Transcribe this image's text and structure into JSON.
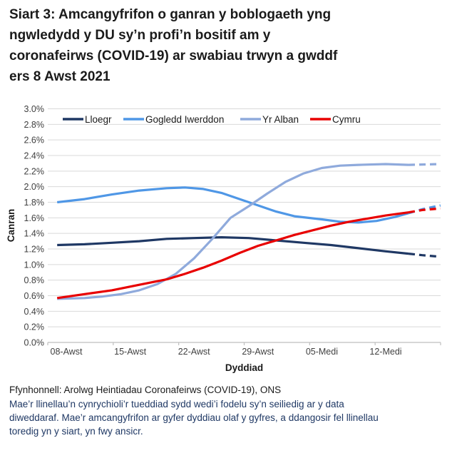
{
  "title": "Siart 3: Amcangyfrifon o ganran y boblogaeth yng\nngwledydd y DU sy’n profi’n bositif am y\ncoronafeirws (COVID-19) ar swabiau trwyn a gwddf\ners 8 Awst 2021",
  "footer": {
    "source": "Ffynhonnell: Arolwg Heintiadau Coronafeirws (COVID-19), ONS",
    "note": "Mae’r llinellau’n cynrychioli’r tueddiad sydd wedi’i fodelu sy’n seiliedig ar y data\ndiweddaraf. Mae’r amcangyfrifon ar gyfer dyddiau olaf y gyfres, a ddangosir fel llinellau\ntoredig yn y siart, yn fwy ansicr."
  },
  "chart_data": {
    "type": "line",
    "title": "",
    "xlabel": "Dyddiad",
    "ylabel": "Canran",
    "ylim": [
      0,
      3.0
    ],
    "y_tick_step": 0.2,
    "y_tick_format": "percent-1dp",
    "grid": "horizontal",
    "legend_position": "top-inside",
    "x_unit": "days since 08-Awst-2021",
    "x_domain_days": [
      -1,
      41
    ],
    "x_tick_days": [
      0,
      7,
      14,
      21,
      28,
      35
    ],
    "x_tick_labels": [
      "08-Awst",
      "15-Awst",
      "22-Awst",
      "29-Awst",
      "05-Medi",
      "12-Medi"
    ],
    "dashed_from_day": 37.5,
    "dashed_meaning": "amcangyfrifon dyddiau olaf y gyfres (yn fwy ansicr)",
    "colors": {
      "grid": "#d9d9d9",
      "axis": "#bfbfbf",
      "tick_label": "#404040",
      "axis_title": "#1a1a1a"
    },
    "series": [
      {
        "name": "Lloegr",
        "color": "#1f3864",
        "solid": [
          [
            -1,
            1.25
          ],
          [
            2,
            1.26
          ],
          [
            5,
            1.28
          ],
          [
            8,
            1.3
          ],
          [
            11,
            1.33
          ],
          [
            14,
            1.34
          ],
          [
            17,
            1.35
          ],
          [
            20,
            1.34
          ],
          [
            23,
            1.31
          ],
          [
            26,
            1.28
          ],
          [
            29,
            1.25
          ],
          [
            32,
            1.21
          ],
          [
            35,
            1.17
          ],
          [
            37.5,
            1.14
          ]
        ],
        "dashed": [
          [
            37.5,
            1.14
          ],
          [
            39,
            1.12
          ],
          [
            41,
            1.1
          ]
        ]
      },
      {
        "name": "Gogledd Iwerddon",
        "color": "#4f97e6",
        "solid": [
          [
            -1,
            1.8
          ],
          [
            2,
            1.84
          ],
          [
            5,
            1.9
          ],
          [
            8,
            1.95
          ],
          [
            11,
            1.98
          ],
          [
            13,
            1.99
          ],
          [
            15,
            1.97
          ],
          [
            17,
            1.92
          ],
          [
            19,
            1.84
          ],
          [
            21,
            1.76
          ],
          [
            23,
            1.68
          ],
          [
            25,
            1.62
          ],
          [
            28,
            1.58
          ],
          [
            30,
            1.55
          ],
          [
            32,
            1.54
          ],
          [
            34,
            1.56
          ],
          [
            36,
            1.61
          ],
          [
            37.5,
            1.66
          ]
        ],
        "dashed": [
          [
            37.5,
            1.66
          ],
          [
            39,
            1.71
          ],
          [
            41,
            1.76
          ]
        ]
      },
      {
        "name": "Yr Alban",
        "color": "#8faadc",
        "solid": [
          [
            -1,
            0.56
          ],
          [
            2,
            0.57
          ],
          [
            4,
            0.59
          ],
          [
            6,
            0.62
          ],
          [
            8,
            0.67
          ],
          [
            10,
            0.75
          ],
          [
            12,
            0.88
          ],
          [
            14,
            1.08
          ],
          [
            16,
            1.33
          ],
          [
            18,
            1.6
          ],
          [
            20,
            1.75
          ],
          [
            22,
            1.91
          ],
          [
            24,
            2.06
          ],
          [
            26,
            2.17
          ],
          [
            28,
            2.24
          ],
          [
            30,
            2.27
          ],
          [
            32,
            2.28
          ],
          [
            35,
            2.29
          ],
          [
            37.5,
            2.28
          ]
        ],
        "dashed": [
          [
            37.5,
            2.28
          ],
          [
            41,
            2.29
          ]
        ]
      },
      {
        "name": "Cymru",
        "color": "#e80000",
        "solid": [
          [
            -1,
            0.57
          ],
          [
            2,
            0.62
          ],
          [
            5,
            0.67
          ],
          [
            8,
            0.74
          ],
          [
            11,
            0.81
          ],
          [
            13,
            0.88
          ],
          [
            15,
            0.96
          ],
          [
            17,
            1.05
          ],
          [
            19,
            1.15
          ],
          [
            21,
            1.24
          ],
          [
            23,
            1.31
          ],
          [
            25,
            1.38
          ],
          [
            27,
            1.44
          ],
          [
            29,
            1.5
          ],
          [
            31,
            1.55
          ],
          [
            33,
            1.59
          ],
          [
            35,
            1.63
          ],
          [
            37.5,
            1.67
          ]
        ],
        "dashed": [
          [
            37.5,
            1.67
          ],
          [
            39,
            1.7
          ],
          [
            41,
            1.72
          ]
        ]
      }
    ]
  }
}
